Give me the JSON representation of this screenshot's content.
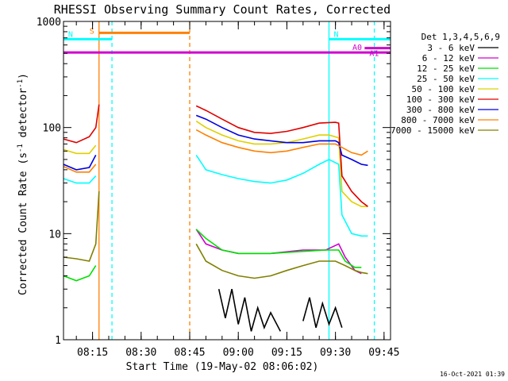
{
  "chart_data": {
    "type": "line",
    "title": "RHESSI Observing Summary Count Rates, Corrected",
    "xlabel": "Start Time (19-May-02 08:06:02)",
    "ylabel": "Corrected Count Rate (s",
    "ylabel_sup1": "-1",
    "ylabel_mid": " detector",
    "ylabel_sup2": "-1",
    "ylabel_end": ")",
    "y_scale": "log",
    "ylim": [
      1,
      1000
    ],
    "y_ticks": [
      {
        "value": 1,
        "label": "1"
      },
      {
        "value": 10,
        "label": "10"
      },
      {
        "value": 100,
        "label": "100"
      },
      {
        "value": 1000,
        "label": "1000"
      }
    ],
    "xlim": [
      "08:06:02",
      "09:47:00"
    ],
    "x_ticks": [
      "08:15",
      "08:30",
      "08:45",
      "09:00",
      "09:15",
      "09:30",
      "09:45"
    ],
    "legend_title": "Det 1,3,4,5,6,9",
    "legend_position": "right",
    "date_stamp": "16-Oct-2021 01:39",
    "series": [
      {
        "name": "3 - 6 keV",
        "color": "#000000",
        "segments": [
          [
            [
              "08:54",
              3.0
            ],
            [
              "08:56",
              1.6
            ],
            [
              "08:58",
              3.0
            ],
            [
              "09:00",
              1.4
            ],
            [
              "09:02",
              2.5
            ],
            [
              "09:04",
              1.2
            ],
            [
              "09:06",
              2.0
            ],
            [
              "09:08",
              1.3
            ],
            [
              "09:10",
              1.8
            ],
            [
              "09:13",
              1.2
            ]
          ],
          [
            [
              "09:20",
              1.5
            ],
            [
              "09:22",
              2.5
            ],
            [
              "09:24",
              1.3
            ],
            [
              "09:26",
              2.2
            ],
            [
              "09:28",
              1.4
            ],
            [
              "09:30",
              2.0
            ],
            [
              "09:32",
              1.3
            ]
          ]
        ]
      },
      {
        "name": "6 - 12 keV",
        "color": "#d000d0",
        "segments": [
          [
            [
              "08:47",
              11
            ],
            [
              "08:50",
              8
            ],
            [
              "08:55",
              7
            ],
            [
              "09:00",
              6.5
            ],
            [
              "09:10",
              6.5
            ],
            [
              "09:20",
              7
            ],
            [
              "09:27",
              7
            ],
            [
              "09:31",
              8
            ],
            [
              "09:33",
              6
            ],
            [
              "09:36",
              4.5
            ],
            [
              "09:38",
              4.2
            ]
          ]
        ]
      },
      {
        "name": "12 - 25 keV",
        "color": "#00e000",
        "segments": [
          [
            [
              "08:06",
              4.0
            ],
            [
              "08:10",
              3.6
            ],
            [
              "08:14",
              4.0
            ],
            [
              "08:16",
              5.0
            ]
          ],
          [
            [
              "08:47",
              11
            ],
            [
              "08:50",
              9
            ],
            [
              "08:55",
              7
            ],
            [
              "09:00",
              6.5
            ],
            [
              "09:10",
              6.5
            ],
            [
              "09:20",
              6.8
            ],
            [
              "09:27",
              7
            ],
            [
              "09:31",
              7
            ],
            [
              "09:33",
              5.5
            ],
            [
              "09:36",
              4.8
            ],
            [
              "09:38",
              4.8
            ]
          ]
        ]
      },
      {
        "name": "25 - 50 keV",
        "color": "#00ffff",
        "segments": [
          [
            [
              "08:06",
              33
            ],
            [
              "08:10",
              30
            ],
            [
              "08:14",
              30
            ],
            [
              "08:16",
              35
            ]
          ],
          [
            [
              "08:47",
              55
            ],
            [
              "08:50",
              40
            ],
            [
              "08:55",
              36
            ],
            [
              "09:00",
              33
            ],
            [
              "09:05",
              31
            ],
            [
              "09:10",
              30
            ],
            [
              "09:15",
              32
            ],
            [
              "09:20",
              37
            ],
            [
              "09:25",
              45
            ],
            [
              "09:28",
              50
            ],
            [
              "09:31",
              45
            ],
            [
              "09:32",
              15
            ],
            [
              "09:35",
              10
            ],
            [
              "09:38",
              9.5
            ],
            [
              "09:40",
              9.5
            ]
          ]
        ]
      },
      {
        "name": "50 - 100 keV",
        "color": "#e0d000",
        "segments": [
          [
            [
              "08:06",
              62
            ],
            [
              "08:10",
              57
            ],
            [
              "08:14",
              57
            ],
            [
              "08:16",
              68
            ]
          ],
          [
            [
              "08:47",
              115
            ],
            [
              "08:50",
              100
            ],
            [
              "08:55",
              85
            ],
            [
              "09:00",
              75
            ],
            [
              "09:05",
              70
            ],
            [
              "09:10",
              70
            ],
            [
              "09:15",
              72
            ],
            [
              "09:20",
              78
            ],
            [
              "09:25",
              85
            ],
            [
              "09:28",
              85
            ],
            [
              "09:31",
              80
            ],
            [
              "09:32",
              25
            ],
            [
              "09:35",
              20
            ],
            [
              "09:38",
              18
            ],
            [
              "09:40",
              18
            ]
          ]
        ]
      },
      {
        "name": "100 - 300 keV",
        "color": "#e00000",
        "segments": [
          [
            [
              "08:06",
              78
            ],
            [
              "08:10",
              72
            ],
            [
              "08:14",
              82
            ],
            [
              "08:16",
              100
            ],
            [
              "08:17",
              165
            ]
          ],
          [
            [
              "08:47",
              160
            ],
            [
              "08:50",
              145
            ],
            [
              "08:55",
              120
            ],
            [
              "09:00",
              100
            ],
            [
              "09:05",
              90
            ],
            [
              "09:10",
              88
            ],
            [
              "09:15",
              92
            ],
            [
              "09:20",
              100
            ],
            [
              "09:25",
              110
            ],
            [
              "09:30",
              112
            ],
            [
              "09:31",
              110
            ],
            [
              "09:32",
              35
            ],
            [
              "09:35",
              25
            ],
            [
              "09:38",
              20
            ],
            [
              "09:40",
              18
            ]
          ]
        ]
      },
      {
        "name": "300 - 800 keV",
        "color": "#0000e0",
        "segments": [
          [
            [
              "08:06",
              45
            ],
            [
              "08:10",
              40
            ],
            [
              "08:14",
              42
            ],
            [
              "08:16",
              55
            ]
          ],
          [
            [
              "08:47",
              130
            ],
            [
              "08:50",
              120
            ],
            [
              "08:55",
              100
            ],
            [
              "09:00",
              85
            ],
            [
              "09:05",
              78
            ],
            [
              "09:10",
              75
            ],
            [
              "09:15",
              72
            ],
            [
              "09:20",
              72
            ],
            [
              "09:25",
              75
            ],
            [
              "09:30",
              75
            ],
            [
              "09:31",
              72
            ],
            [
              "09:32",
              55
            ],
            [
              "09:35",
              50
            ],
            [
              "09:38",
              45
            ],
            [
              "09:40",
              44
            ]
          ]
        ]
      },
      {
        "name": "800 - 7000 keV",
        "color": "#ff8000",
        "segments": [
          [
            [
              "08:06",
              43
            ],
            [
              "08:10",
              38
            ],
            [
              "08:14",
              38
            ],
            [
              "08:16",
              45
            ]
          ],
          [
            [
              "08:47",
              95
            ],
            [
              "08:50",
              85
            ],
            [
              "08:55",
              72
            ],
            [
              "09:00",
              65
            ],
            [
              "09:05",
              60
            ],
            [
              "09:10",
              58
            ],
            [
              "09:15",
              60
            ],
            [
              "09:20",
              65
            ],
            [
              "09:25",
              70
            ],
            [
              "09:30",
              70
            ],
            [
              "09:32",
              65
            ],
            [
              "09:35",
              58
            ],
            [
              "09:38",
              55
            ],
            [
              "09:40",
              60
            ]
          ]
        ]
      },
      {
        "name": "7000 - 15000 keV",
        "color": "#808000",
        "segments": [
          [
            [
              "08:06",
              6.0
            ],
            [
              "08:10",
              5.8
            ],
            [
              "08:14",
              5.5
            ],
            [
              "08:16",
              8
            ],
            [
              "08:17",
              25
            ]
          ],
          [
            [
              "08:47",
              8
            ],
            [
              "08:50",
              5.5
            ],
            [
              "08:55",
              4.5
            ],
            [
              "09:00",
              4.0
            ],
            [
              "09:05",
              3.8
            ],
            [
              "09:10",
              4.0
            ],
            [
              "09:15",
              4.5
            ],
            [
              "09:20",
              5.0
            ],
            [
              "09:25",
              5.5
            ],
            [
              "09:30",
              5.5
            ],
            [
              "09:33",
              5.0
            ],
            [
              "09:36",
              4.5
            ],
            [
              "09:38",
              4.3
            ],
            [
              "09:40",
              4.2
            ]
          ]
        ]
      }
    ],
    "annotations": {
      "vertical_lines": [
        {
          "time": "08:17",
          "color": "#ff8000",
          "style": "solid"
        },
        {
          "time": "08:21",
          "color": "#00ffff",
          "style": "dashed"
        },
        {
          "time": "08:45",
          "color": "#ff8000",
          "style": "dashed"
        },
        {
          "time": "09:28",
          "color": "#00ffff",
          "style": "solid"
        },
        {
          "time": "09:42",
          "color": "#00ffff",
          "style": "dashed"
        }
      ],
      "bars": [
        {
          "label": "S",
          "color": "#ff8000",
          "from": "08:17",
          "to": "08:45",
          "value": 780
        },
        {
          "label": "N",
          "color": "#00ffff",
          "from": "08:06",
          "to": "08:21",
          "value": 680
        },
        {
          "label": "N",
          "color": "#00ffff",
          "from": "09:28",
          "to": "09:47",
          "value": 680
        },
        {
          "label": "A0",
          "color": "#d000d0",
          "from": "08:06",
          "to": "09:47",
          "value": 510
        },
        {
          "label": "A1",
          "color": "#d000d0",
          "from": "09:39",
          "to": "09:47",
          "value": 560
        }
      ]
    }
  }
}
